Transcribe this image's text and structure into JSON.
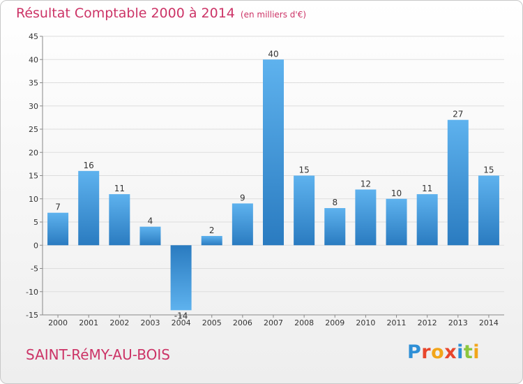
{
  "header": {
    "title": "Résultat Comptable 2000 à 2014",
    "subtitle": "(en milliers d'€)"
  },
  "footer": {
    "municipality": "SAINT-RéMY-AU-BOIS",
    "brand": "Proxiti"
  },
  "colors": {
    "title": "#cc3366",
    "bar_dark": "#2a7bc0",
    "bar_light": "#5eb2ee",
    "grid": "#dddddd"
  },
  "chart_data": {
    "type": "bar",
    "categories": [
      "2000",
      "2001",
      "2002",
      "2003",
      "2004",
      "2005",
      "2006",
      "2007",
      "2008",
      "2009",
      "2010",
      "2011",
      "2012",
      "2013",
      "2014"
    ],
    "values": [
      7,
      16,
      11,
      4,
      -14,
      2,
      9,
      40,
      15,
      8,
      12,
      10,
      11,
      27,
      15
    ],
    "ylim": [
      -15,
      45
    ],
    "yticks": [
      -15,
      -10,
      -5,
      0,
      5,
      10,
      15,
      20,
      25,
      30,
      35,
      40,
      45
    ],
    "title": "Résultat Comptable 2000 à 2014",
    "xlabel": "",
    "ylabel": "",
    "grid": true
  }
}
